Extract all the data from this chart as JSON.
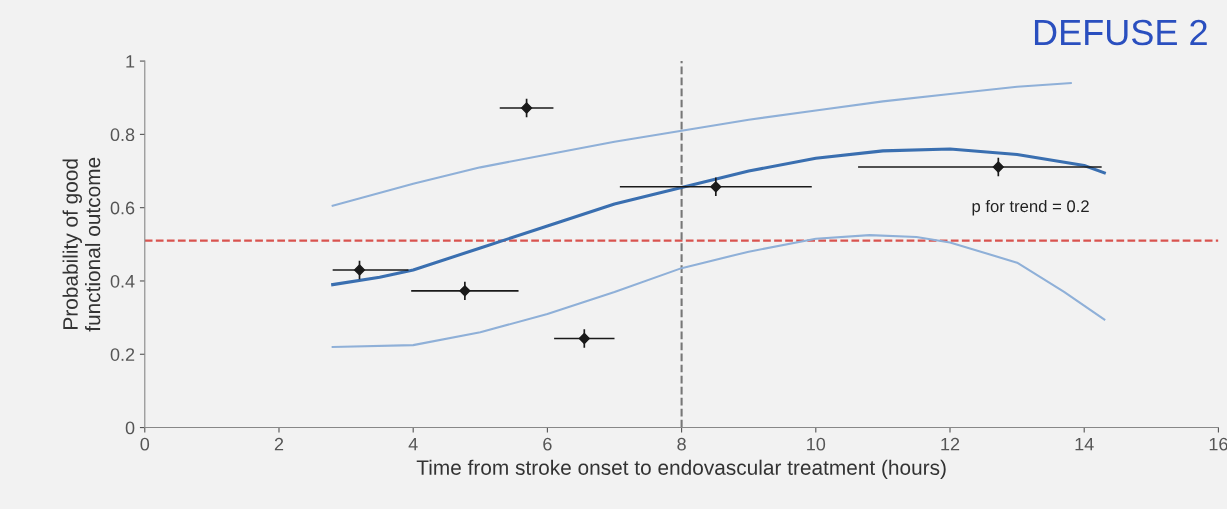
{
  "chart_data": {
    "type": "scatter",
    "title": "DEFUSE 2",
    "xlabel": "Time from stroke onset to endovascular treatment (hours)",
    "ylabel": "Probability of good\nfunctional outcome",
    "xlim": [
      0,
      16
    ],
    "xticks": [
      0,
      2,
      4,
      6,
      8,
      10,
      12,
      14,
      16
    ],
    "ylim": [
      0,
      1
    ],
    "yticks": [
      0,
      0.2,
      0.4,
      0.6,
      0.8,
      1
    ],
    "grid": false,
    "legend": false,
    "annotations": [
      "p for trend = 0.2"
    ],
    "ref_lines": [
      {
        "axis": "y",
        "value": 0.51,
        "color": "#d9534f",
        "line_style": "dashed"
      },
      {
        "axis": "x",
        "value": 8,
        "color": "#777777",
        "line_style": "dashed"
      }
    ],
    "series": [
      {
        "color": "#1a1a1a",
        "marker": "diamond",
        "x": [
          3.2,
          4.77,
          5.69,
          6.55,
          8.51,
          12.72
        ],
        "values": [
          0.43,
          0.373,
          0.872,
          0.243,
          0.657,
          0.711
        ],
        "errors": [
          0.025,
          0.025,
          0.025,
          0.025,
          0.025,
          0.025
        ],
        "xerrors": [
          [
            2.8,
            3.93
          ],
          0.8,
          0.4,
          0.45,
          1.43,
          [
            10.63,
            14.26
          ]
        ]
      },
      {
        "type": "line",
        "color": "#3a6fb0",
        "line_style": "solid",
        "x": [
          2.8,
          3.5,
          4,
          5,
          6,
          7,
          8,
          9,
          10,
          11,
          12,
          13,
          14,
          14.3
        ],
        "values": [
          0.39,
          0.41,
          0.43,
          0.49,
          0.55,
          0.61,
          0.655,
          0.7,
          0.735,
          0.755,
          0.76,
          0.745,
          0.715,
          0.695
        ]
      },
      {
        "type": "line",
        "color": "#8fb0d8",
        "line_style": "solid",
        "x": [
          2.8,
          4,
          5,
          6,
          7,
          8,
          9,
          10,
          11,
          12,
          13,
          13.8
        ],
        "values": [
          0.605,
          0.665,
          0.71,
          0.745,
          0.78,
          0.81,
          0.84,
          0.865,
          0.89,
          0.91,
          0.93,
          0.94
        ]
      },
      {
        "type": "line",
        "color": "#8fb0d8",
        "line_style": "solid",
        "x": [
          2.8,
          4,
          5,
          6,
          7,
          8,
          9,
          10,
          10.8,
          11.5,
          12,
          13,
          13.7,
          14.3
        ],
        "values": [
          0.22,
          0.225,
          0.26,
          0.31,
          0.37,
          0.435,
          0.48,
          0.515,
          0.525,
          0.52,
          0.505,
          0.45,
          0.37,
          0.295
        ]
      }
    ]
  }
}
